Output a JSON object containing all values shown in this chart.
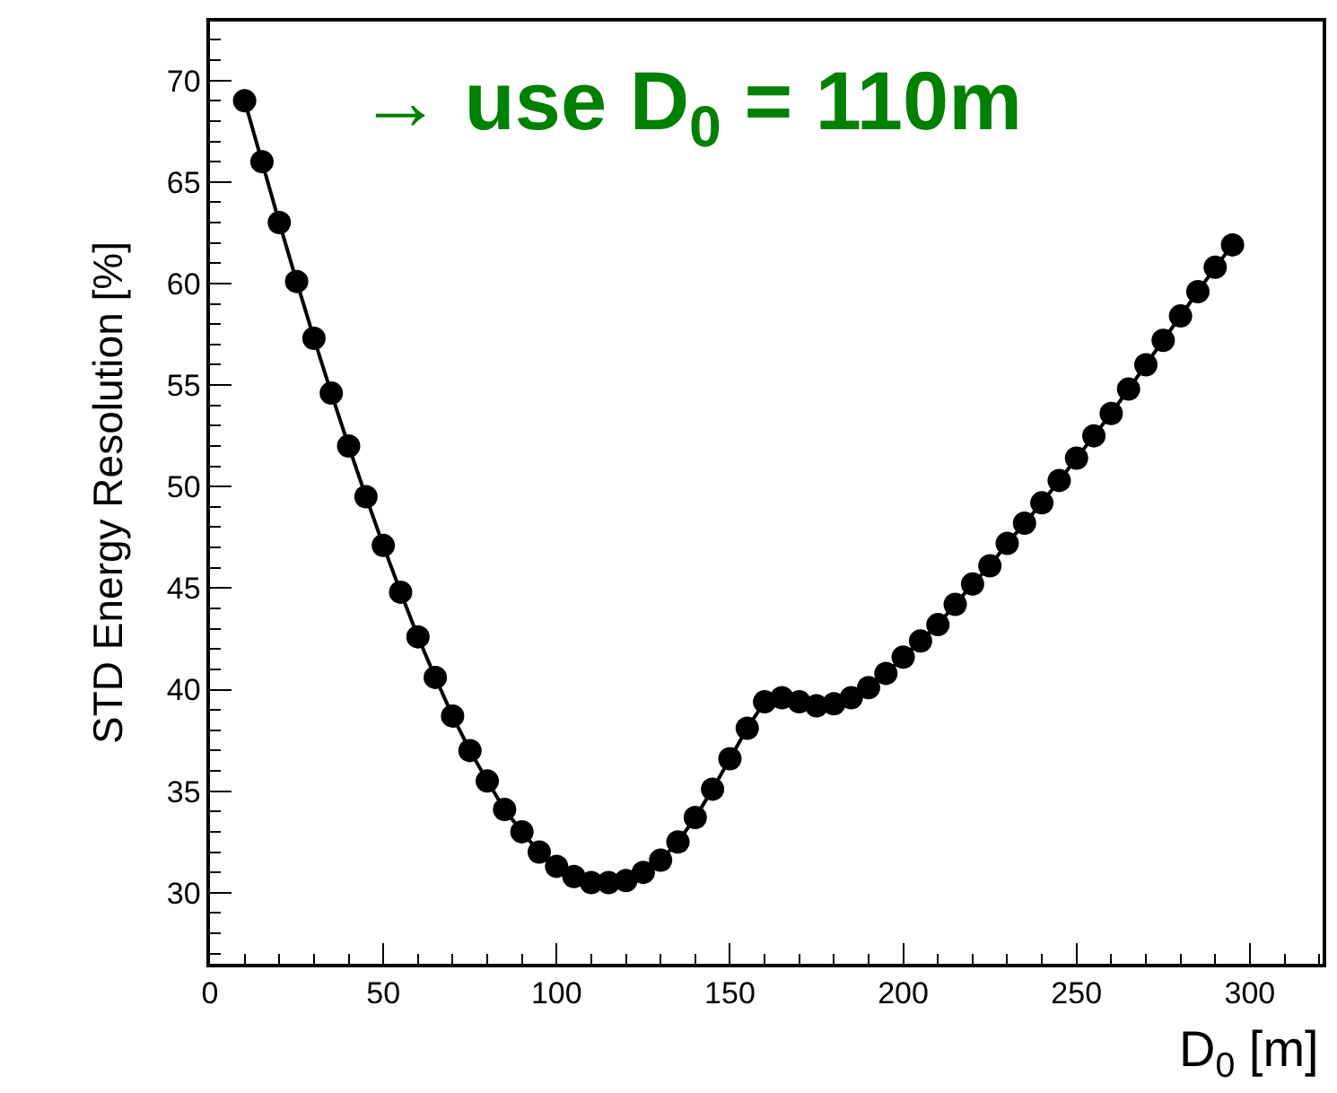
{
  "chart_data": {
    "type": "line",
    "xlabel": "D$_{0}$ [m]",
    "ylabel": "STD Energy Resolution [%]",
    "annotations": [
      "→ use D$_{0}$ = 110m"
    ],
    "x": [
      10,
      15,
      20,
      25,
      30,
      35,
      40,
      45,
      50,
      55,
      60,
      65,
      70,
      75,
      80,
      85,
      90,
      95,
      100,
      105,
      110,
      115,
      120,
      125,
      130,
      135,
      140,
      145,
      150,
      155,
      160,
      165,
      170,
      175,
      180,
      185,
      190,
      195,
      200,
      205,
      210,
      215,
      220,
      225,
      230,
      235,
      240,
      245,
      250,
      255,
      260,
      265,
      270,
      275,
      280,
      285,
      290,
      295
    ],
    "series": [
      {
        "color": "#000000",
        "values": [
          69.0,
          66.0,
          63.0,
          60.1,
          57.3,
          54.6,
          52.0,
          49.5,
          47.1,
          44.8,
          42.6,
          40.6,
          38.7,
          37.0,
          35.5,
          34.1,
          33.0,
          32.0,
          31.3,
          30.8,
          30.5,
          30.5,
          30.6,
          31.0,
          31.6,
          32.5,
          33.7,
          35.1,
          36.6,
          38.1,
          39.4,
          39.6,
          39.4,
          39.2,
          39.3,
          39.6,
          40.1,
          40.8,
          41.6,
          42.4,
          43.2,
          44.2,
          45.2,
          46.1,
          47.2,
          48.2,
          49.2,
          50.3,
          51.4,
          52.5,
          53.6,
          54.8,
          56.0,
          57.2,
          58.4,
          59.6,
          60.8,
          61.9
        ]
      }
    ],
    "xlim": [
      0,
      321
    ],
    "ylim": [
      26.5,
      72.9
    ],
    "xticks": [
      0,
      50,
      100,
      150,
      200,
      250,
      300
    ],
    "yticks": [
      30,
      35,
      40,
      45,
      50,
      55,
      60,
      65,
      70
    ],
    "grid": false,
    "legend": false,
    "marker": "circle",
    "line_style": "solid"
  }
}
